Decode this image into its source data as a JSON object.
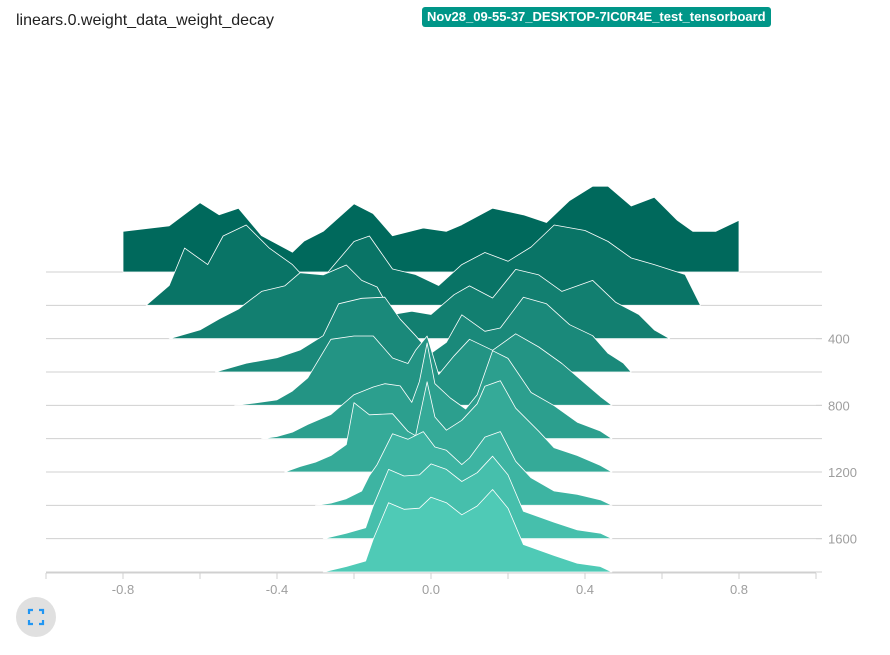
{
  "header": {
    "title": "linears.0.weight_data_weight_decay",
    "run_tag": "Nov28_09-55-37_DESKTOP-7IC0R4E_test_tensorboard"
  },
  "colors": {
    "run_tag_bg": "#009688",
    "oldest_series": "#00695c",
    "newest_series": "#4fcab6",
    "outline": "#ffffff",
    "baseline": "#d0d0d0",
    "axis_text": "#9e9e9e",
    "expand_icon": "#2196f3"
  },
  "icons": {
    "expand": "expand-icon"
  },
  "chart_data": {
    "type": "area",
    "subtype": "histogram-overlay (ridge plot)",
    "x_ticks": [
      "-0.8",
      "-0.4",
      "0.0",
      "0.4",
      "0.8"
    ],
    "x_range": [
      -1.0,
      1.0
    ],
    "y_ticks": [
      "400",
      "800",
      "1200",
      "1600"
    ],
    "y_range": [
      0,
      2000
    ],
    "step_offsets": [
      0,
      200,
      400,
      600,
      800,
      1000,
      1200,
      1400,
      1600,
      1800
    ],
    "series": [
      {
        "step": 0,
        "points": [
          [
            -0.8,
            0
          ],
          [
            -0.8,
            0.37
          ],
          [
            -0.68,
            0.42
          ],
          [
            -0.6,
            0.63
          ],
          [
            -0.55,
            0.52
          ],
          [
            -0.5,
            0.58
          ],
          [
            -0.44,
            0.33
          ],
          [
            -0.36,
            0.18
          ],
          [
            -0.33,
            0.28
          ],
          [
            -0.28,
            0.37
          ],
          [
            -0.2,
            0.62
          ],
          [
            -0.15,
            0.53
          ],
          [
            -0.1,
            0.33
          ],
          [
            -0.02,
            0.4
          ],
          [
            0.04,
            0.37
          ],
          [
            0.08,
            0.43
          ],
          [
            0.16,
            0.58
          ],
          [
            0.24,
            0.52
          ],
          [
            0.3,
            0.45
          ],
          [
            0.36,
            0.65
          ],
          [
            0.42,
            0.78
          ],
          [
            0.46,
            0.78
          ],
          [
            0.52,
            0.6
          ],
          [
            0.58,
            0.68
          ],
          [
            0.64,
            0.47
          ],
          [
            0.68,
            0.37
          ],
          [
            0.74,
            0.37
          ],
          [
            0.8,
            0.47
          ],
          [
            0.8,
            0
          ]
        ]
      },
      {
        "step": 200,
        "points": [
          [
            -0.74,
            0
          ],
          [
            -0.68,
            0.18
          ],
          [
            -0.64,
            0.52
          ],
          [
            -0.58,
            0.37
          ],
          [
            -0.54,
            0.63
          ],
          [
            -0.48,
            0.73
          ],
          [
            -0.42,
            0.52
          ],
          [
            -0.36,
            0.37
          ],
          [
            -0.32,
            0.22
          ],
          [
            -0.28,
            0.25
          ],
          [
            -0.2,
            0.58
          ],
          [
            -0.16,
            0.63
          ],
          [
            -0.1,
            0.33
          ],
          [
            -0.04,
            0.28
          ],
          [
            0.02,
            0.18
          ],
          [
            0.08,
            0.37
          ],
          [
            0.14,
            0.48
          ],
          [
            0.2,
            0.4
          ],
          [
            0.26,
            0.53
          ],
          [
            0.32,
            0.73
          ],
          [
            0.4,
            0.68
          ],
          [
            0.46,
            0.58
          ],
          [
            0.52,
            0.43
          ],
          [
            0.58,
            0.37
          ],
          [
            0.66,
            0.28
          ],
          [
            0.7,
            0
          ]
        ]
      },
      {
        "step": 400,
        "points": [
          [
            -0.68,
            0
          ],
          [
            -0.6,
            0.08
          ],
          [
            -0.55,
            0.18
          ],
          [
            -0.5,
            0.27
          ],
          [
            -0.44,
            0.43
          ],
          [
            -0.38,
            0.48
          ],
          [
            -0.34,
            0.6
          ],
          [
            -0.28,
            0.58
          ],
          [
            -0.22,
            0.67
          ],
          [
            -0.18,
            0.53
          ],
          [
            -0.14,
            0.47
          ],
          [
            -0.1,
            0.22
          ],
          [
            -0.05,
            0.25
          ],
          [
            0.0,
            0.22
          ],
          [
            0.06,
            0.4
          ],
          [
            0.1,
            0.48
          ],
          [
            0.16,
            0.37
          ],
          [
            0.22,
            0.63
          ],
          [
            0.28,
            0.58
          ],
          [
            0.34,
            0.43
          ],
          [
            0.42,
            0.53
          ],
          [
            0.48,
            0.33
          ],
          [
            0.54,
            0.22
          ],
          [
            0.58,
            0.08
          ],
          [
            0.62,
            0
          ]
        ]
      },
      {
        "step": 600,
        "points": [
          [
            -0.56,
            0
          ],
          [
            -0.48,
            0.08
          ],
          [
            -0.4,
            0.13
          ],
          [
            -0.34,
            0.2
          ],
          [
            -0.28,
            0.33
          ],
          [
            -0.24,
            0.62
          ],
          [
            -0.18,
            0.67
          ],
          [
            -0.12,
            0.68
          ],
          [
            -0.08,
            0.48
          ],
          [
            -0.04,
            0.33
          ],
          [
            0.0,
            0.17
          ],
          [
            0.04,
            0.27
          ],
          [
            0.08,
            0.52
          ],
          [
            0.14,
            0.37
          ],
          [
            0.18,
            0.4
          ],
          [
            0.24,
            0.68
          ],
          [
            0.3,
            0.62
          ],
          [
            0.36,
            0.43
          ],
          [
            0.42,
            0.33
          ],
          [
            0.46,
            0.17
          ],
          [
            0.5,
            0.08
          ],
          [
            0.52,
            0
          ]
        ]
      },
      {
        "step": 800,
        "points": [
          [
            -0.51,
            0
          ],
          [
            -0.46,
            0.02
          ],
          [
            -0.4,
            0.05
          ],
          [
            -0.36,
            0.13
          ],
          [
            -0.32,
            0.25
          ],
          [
            -0.26,
            0.6
          ],
          [
            -0.2,
            0.63
          ],
          [
            -0.15,
            0.63
          ],
          [
            -0.1,
            0.43
          ],
          [
            -0.06,
            0.38
          ],
          [
            -0.04,
            0.5
          ],
          [
            -0.01,
            0.63
          ],
          [
            0.02,
            0.28
          ],
          [
            0.06,
            0.45
          ],
          [
            0.1,
            0.6
          ],
          [
            0.16,
            0.5
          ],
          [
            0.22,
            0.65
          ],
          [
            0.28,
            0.53
          ],
          [
            0.34,
            0.38
          ],
          [
            0.4,
            0.2
          ],
          [
            0.44,
            0.08
          ],
          [
            0.47,
            0
          ]
        ]
      },
      {
        "step": 1000,
        "points": [
          [
            -0.44,
            0
          ],
          [
            -0.4,
            0.02
          ],
          [
            -0.36,
            0.06
          ],
          [
            -0.32,
            0.13
          ],
          [
            -0.26,
            0.22
          ],
          [
            -0.2,
            0.4
          ],
          [
            -0.15,
            0.47
          ],
          [
            -0.12,
            0.5
          ],
          [
            -0.08,
            0.48
          ],
          [
            -0.05,
            0.33
          ],
          [
            -0.03,
            0.52
          ],
          [
            -0.01,
            0.87
          ],
          [
            0.01,
            0.5
          ],
          [
            0.05,
            0.37
          ],
          [
            0.09,
            0.27
          ],
          [
            0.12,
            0.4
          ],
          [
            0.16,
            0.8
          ],
          [
            0.2,
            0.73
          ],
          [
            0.26,
            0.42
          ],
          [
            0.32,
            0.3
          ],
          [
            0.38,
            0.15
          ],
          [
            0.44,
            0.07
          ],
          [
            0.47,
            0
          ]
        ]
      },
      {
        "step": 1200,
        "points": [
          [
            -0.38,
            0
          ],
          [
            -0.34,
            0.05
          ],
          [
            -0.3,
            0.09
          ],
          [
            -0.26,
            0.15
          ],
          [
            -0.22,
            0.25
          ],
          [
            -0.2,
            0.63
          ],
          [
            -0.16,
            0.52
          ],
          [
            -0.1,
            0.53
          ],
          [
            -0.06,
            0.37
          ],
          [
            -0.04,
            0.33
          ],
          [
            -0.01,
            0.82
          ],
          [
            0.01,
            0.5
          ],
          [
            0.04,
            0.38
          ],
          [
            0.08,
            0.47
          ],
          [
            0.12,
            0.62
          ],
          [
            0.14,
            0.78
          ],
          [
            0.18,
            0.83
          ],
          [
            0.22,
            0.58
          ],
          [
            0.28,
            0.37
          ],
          [
            0.32,
            0.22
          ],
          [
            0.38,
            0.15
          ],
          [
            0.44,
            0.06
          ],
          [
            0.47,
            0
          ]
        ]
      },
      {
        "step": 1400,
        "points": [
          [
            -0.3,
            0
          ],
          [
            -0.26,
            0.02
          ],
          [
            -0.22,
            0.06
          ],
          [
            -0.18,
            0.13
          ],
          [
            -0.16,
            0.27
          ],
          [
            -0.14,
            0.37
          ],
          [
            -0.1,
            0.65
          ],
          [
            -0.06,
            0.6
          ],
          [
            -0.02,
            0.67
          ],
          [
            0.01,
            0.53
          ],
          [
            0.04,
            0.5
          ],
          [
            0.08,
            0.37
          ],
          [
            0.1,
            0.43
          ],
          [
            0.14,
            0.62
          ],
          [
            0.18,
            0.67
          ],
          [
            0.22,
            0.4
          ],
          [
            0.26,
            0.25
          ],
          [
            0.32,
            0.13
          ],
          [
            0.38,
            0.1
          ],
          [
            0.44,
            0.05
          ],
          [
            0.47,
            0
          ]
        ]
      },
      {
        "step": 1600,
        "points": [
          [
            -0.28,
            0
          ],
          [
            -0.22,
            0.05
          ],
          [
            -0.17,
            0.1
          ],
          [
            -0.15,
            0.3
          ],
          [
            -0.11,
            0.63
          ],
          [
            -0.07,
            0.57
          ],
          [
            -0.03,
            0.58
          ],
          [
            0.0,
            0.68
          ],
          [
            0.04,
            0.63
          ],
          [
            0.08,
            0.52
          ],
          [
            0.12,
            0.6
          ],
          [
            0.16,
            0.75
          ],
          [
            0.2,
            0.58
          ],
          [
            0.24,
            0.25
          ],
          [
            0.28,
            0.2
          ],
          [
            0.32,
            0.15
          ],
          [
            0.38,
            0.08
          ],
          [
            0.44,
            0.05
          ],
          [
            0.47,
            0
          ]
        ]
      },
      {
        "step": 1800,
        "points": [
          [
            -0.28,
            0
          ],
          [
            -0.22,
            0.05
          ],
          [
            -0.17,
            0.1
          ],
          [
            -0.15,
            0.3
          ],
          [
            -0.11,
            0.63
          ],
          [
            -0.07,
            0.57
          ],
          [
            -0.03,
            0.58
          ],
          [
            0.0,
            0.68
          ],
          [
            0.04,
            0.63
          ],
          [
            0.08,
            0.52
          ],
          [
            0.12,
            0.6
          ],
          [
            0.16,
            0.75
          ],
          [
            0.2,
            0.58
          ],
          [
            0.24,
            0.25
          ],
          [
            0.28,
            0.2
          ],
          [
            0.32,
            0.15
          ],
          [
            0.38,
            0.08
          ],
          [
            0.44,
            0.05
          ],
          [
            0.47,
            0
          ]
        ]
      }
    ]
  }
}
